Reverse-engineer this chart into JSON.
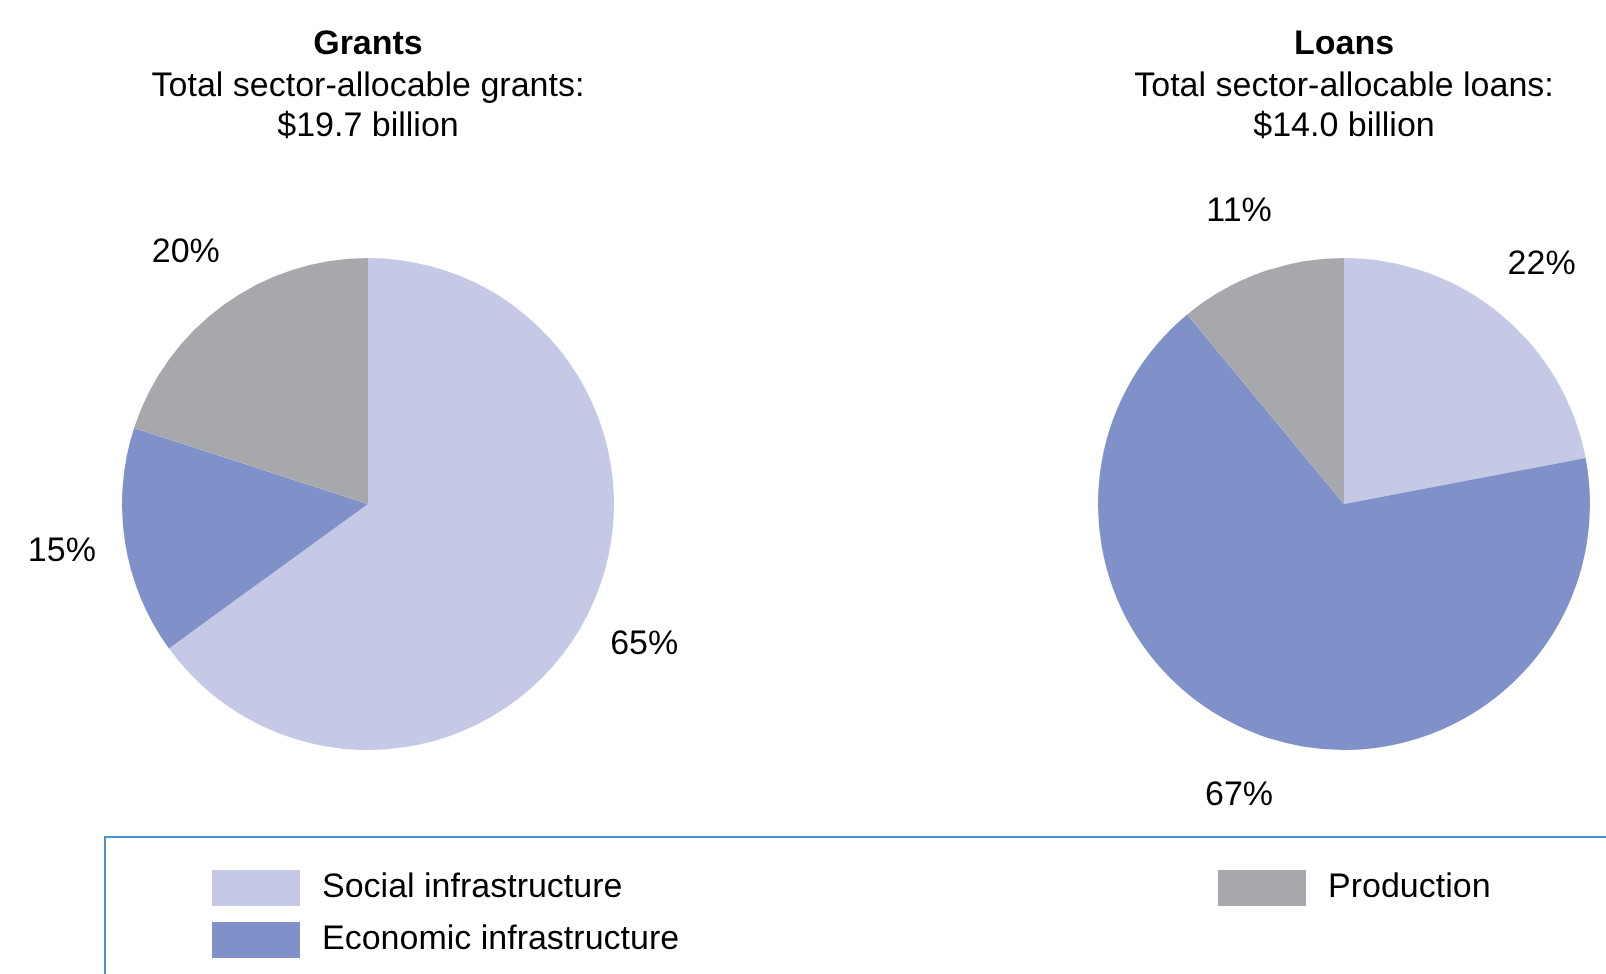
{
  "chart_data": [
    {
      "type": "pie",
      "title": "Grants",
      "subtitle": "Total sector-allocable grants:\n$19.7 billion",
      "categories": [
        "Social infrastructure",
        "Economic infrastructure",
        "Production"
      ],
      "values": [
        65,
        15,
        20
      ],
      "value_labels": [
        "65%",
        "15%",
        "20%"
      ],
      "colors": [
        "#c5c9e5",
        "#8090c8",
        "#a7a8ab"
      ],
      "legend": "bottom"
    },
    {
      "type": "pie",
      "title": "Loans",
      "subtitle": "Total sector-allocable loans:\n$14.0 billion",
      "categories": [
        null,
        null,
        null
      ],
      "values": [
        22,
        67,
        11
      ],
      "value_labels": [
        "22%",
        "67%",
        "11%"
      ],
      "colors": [
        "#c5c9e5",
        "#8090c8",
        "#a7a8ab"
      ]
    }
  ]
}
